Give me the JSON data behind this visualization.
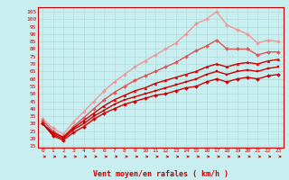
{
  "xlabel": "Vent moyen/en rafales ( km/h )",
  "bg_color": "#c8eef0",
  "grid_color": "#b0dddd",
  "axis_color": "#cc0000",
  "text_color": "#cc0000",
  "ylim": [
    14,
    108
  ],
  "xlim": [
    -0.5,
    23.5
  ],
  "yticks": [
    15,
    20,
    25,
    30,
    35,
    40,
    45,
    50,
    55,
    60,
    65,
    70,
    75,
    80,
    85,
    90,
    95,
    100,
    105
  ],
  "xticks": [
    0,
    1,
    2,
    3,
    4,
    5,
    6,
    7,
    8,
    9,
    10,
    11,
    12,
    13,
    14,
    15,
    16,
    17,
    18,
    19,
    20,
    21,
    22,
    23
  ],
  "lines": [
    {
      "x": [
        0,
        1,
        2,
        3,
        4,
        5,
        6,
        7,
        8,
        9,
        10,
        11,
        12,
        13,
        14,
        15,
        16,
        17,
        18,
        19,
        20,
        21,
        22,
        23
      ],
      "y": [
        30,
        22,
        19,
        24,
        28,
        33,
        37,
        40,
        43,
        45,
        47,
        49,
        50,
        52,
        54,
        55,
        58,
        60,
        58,
        60,
        61,
        60,
        62,
        63
      ],
      "color": "#cc0000",
      "lw": 1.0,
      "marker": "D",
      "ms": 2.0
    },
    {
      "x": [
        0,
        1,
        2,
        3,
        4,
        5,
        6,
        7,
        8,
        9,
        10,
        11,
        12,
        13,
        14,
        15,
        16,
        17,
        18,
        19,
        20,
        21,
        22,
        23
      ],
      "y": [
        30,
        23,
        20,
        26,
        30,
        35,
        39,
        43,
        46,
        48,
        50,
        52,
        54,
        56,
        58,
        60,
        63,
        65,
        63,
        65,
        66,
        65,
        67,
        68
      ],
      "color": "#cc0000",
      "lw": 1.0,
      "marker": "s",
      "ms": 2.0
    },
    {
      "x": [
        0,
        1,
        2,
        3,
        4,
        5,
        6,
        7,
        8,
        9,
        10,
        11,
        12,
        13,
        14,
        15,
        16,
        17,
        18,
        19,
        20,
        21,
        22,
        23
      ],
      "y": [
        30,
        24,
        21,
        27,
        32,
        37,
        42,
        46,
        49,
        52,
        54,
        57,
        59,
        61,
        63,
        65,
        68,
        70,
        68,
        70,
        71,
        70,
        72,
        73
      ],
      "color": "#cc0000",
      "lw": 1.0,
      "marker": "^",
      "ms": 2.0
    },
    {
      "x": [
        0,
        1,
        2,
        3,
        4,
        5,
        6,
        7,
        8,
        9,
        10,
        11,
        12,
        13,
        14,
        15,
        16,
        17,
        18,
        19,
        20,
        21,
        22,
        23
      ],
      "y": [
        32,
        25,
        21,
        28,
        34,
        40,
        46,
        51,
        55,
        59,
        62,
        65,
        68,
        71,
        75,
        79,
        82,
        86,
        80,
        80,
        80,
        76,
        78,
        78
      ],
      "color": "#dd5555",
      "lw": 1.0,
      "marker": "D",
      "ms": 2.0
    },
    {
      "x": [
        0,
        1,
        2,
        3,
        4,
        5,
        6,
        7,
        8,
        9,
        10,
        11,
        12,
        13,
        14,
        15,
        16,
        17,
        18,
        19,
        20,
        21,
        22,
        23
      ],
      "y": [
        33,
        27,
        23,
        31,
        38,
        45,
        52,
        58,
        63,
        68,
        72,
        76,
        80,
        84,
        90,
        97,
        100,
        105,
        96,
        93,
        90,
        84,
        86,
        85
      ],
      "color": "#ee9999",
      "lw": 1.0,
      "marker": "D",
      "ms": 2.0
    }
  ]
}
